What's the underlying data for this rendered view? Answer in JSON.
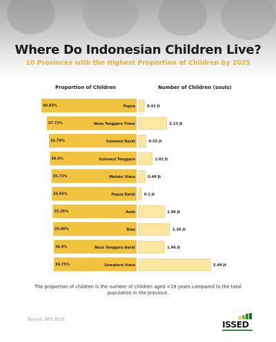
{
  "header": {
    "title": "Where Do Indonesian Children Live?",
    "subtitle": "10 Provinces with the Highest Proportion of Children by 2025"
  },
  "columns": {
    "left": "Proportion of Children",
    "right": "Number of Children (souls)"
  },
  "chart_data": {
    "type": "bar",
    "categories": [
      "Papua",
      "Nusa Tenggara Timur",
      "Sulawesi Barat",
      "Sulawesi Tenggara",
      "Maluku Utara",
      "Papua Barat",
      "Aceh",
      "Riau",
      "Nusa Tenggara Barat",
      "Sumatera Utara"
    ],
    "series": [
      {
        "values": [
          40.03,
          37.72,
          36.79,
          36.4,
          35.73,
          35.65,
          35.25,
          35.06,
          34.8,
          34.75
        ],
        "labels": [
          "40.03%",
          "37.72%",
          "36.79%",
          "36.4%",
          "35.73%",
          "35.65%",
          "35.25%",
          "35.06%",
          "34.8%",
          "34.75%"
        ]
      },
      {
        "values": [
          0.42,
          2.13,
          0.55,
          1.02,
          0.48,
          0.2,
          1.96,
          2.36,
          1.96,
          5.49
        ],
        "labels": [
          "0.42 Jt",
          "2.13 Jt",
          "0.55 Jt",
          "1.02 Jt",
          "0.48 Jt",
          "0.2 Jt",
          "1.96 Jt",
          "2.36 Jt",
          "1.96 Jt",
          "5.49 Jt"
        ]
      }
    ],
    "colors": {
      "proportion_bar": "#f2c33e",
      "children_bar": "#fde7a3",
      "children_bar_border": "#e6bd4e"
    }
  },
  "footer": {
    "note": "The proportion of children is the number of children aged <19 years compared to the total population in the province.",
    "source": "Source: BPS 2025",
    "logo": "ISSED"
  }
}
